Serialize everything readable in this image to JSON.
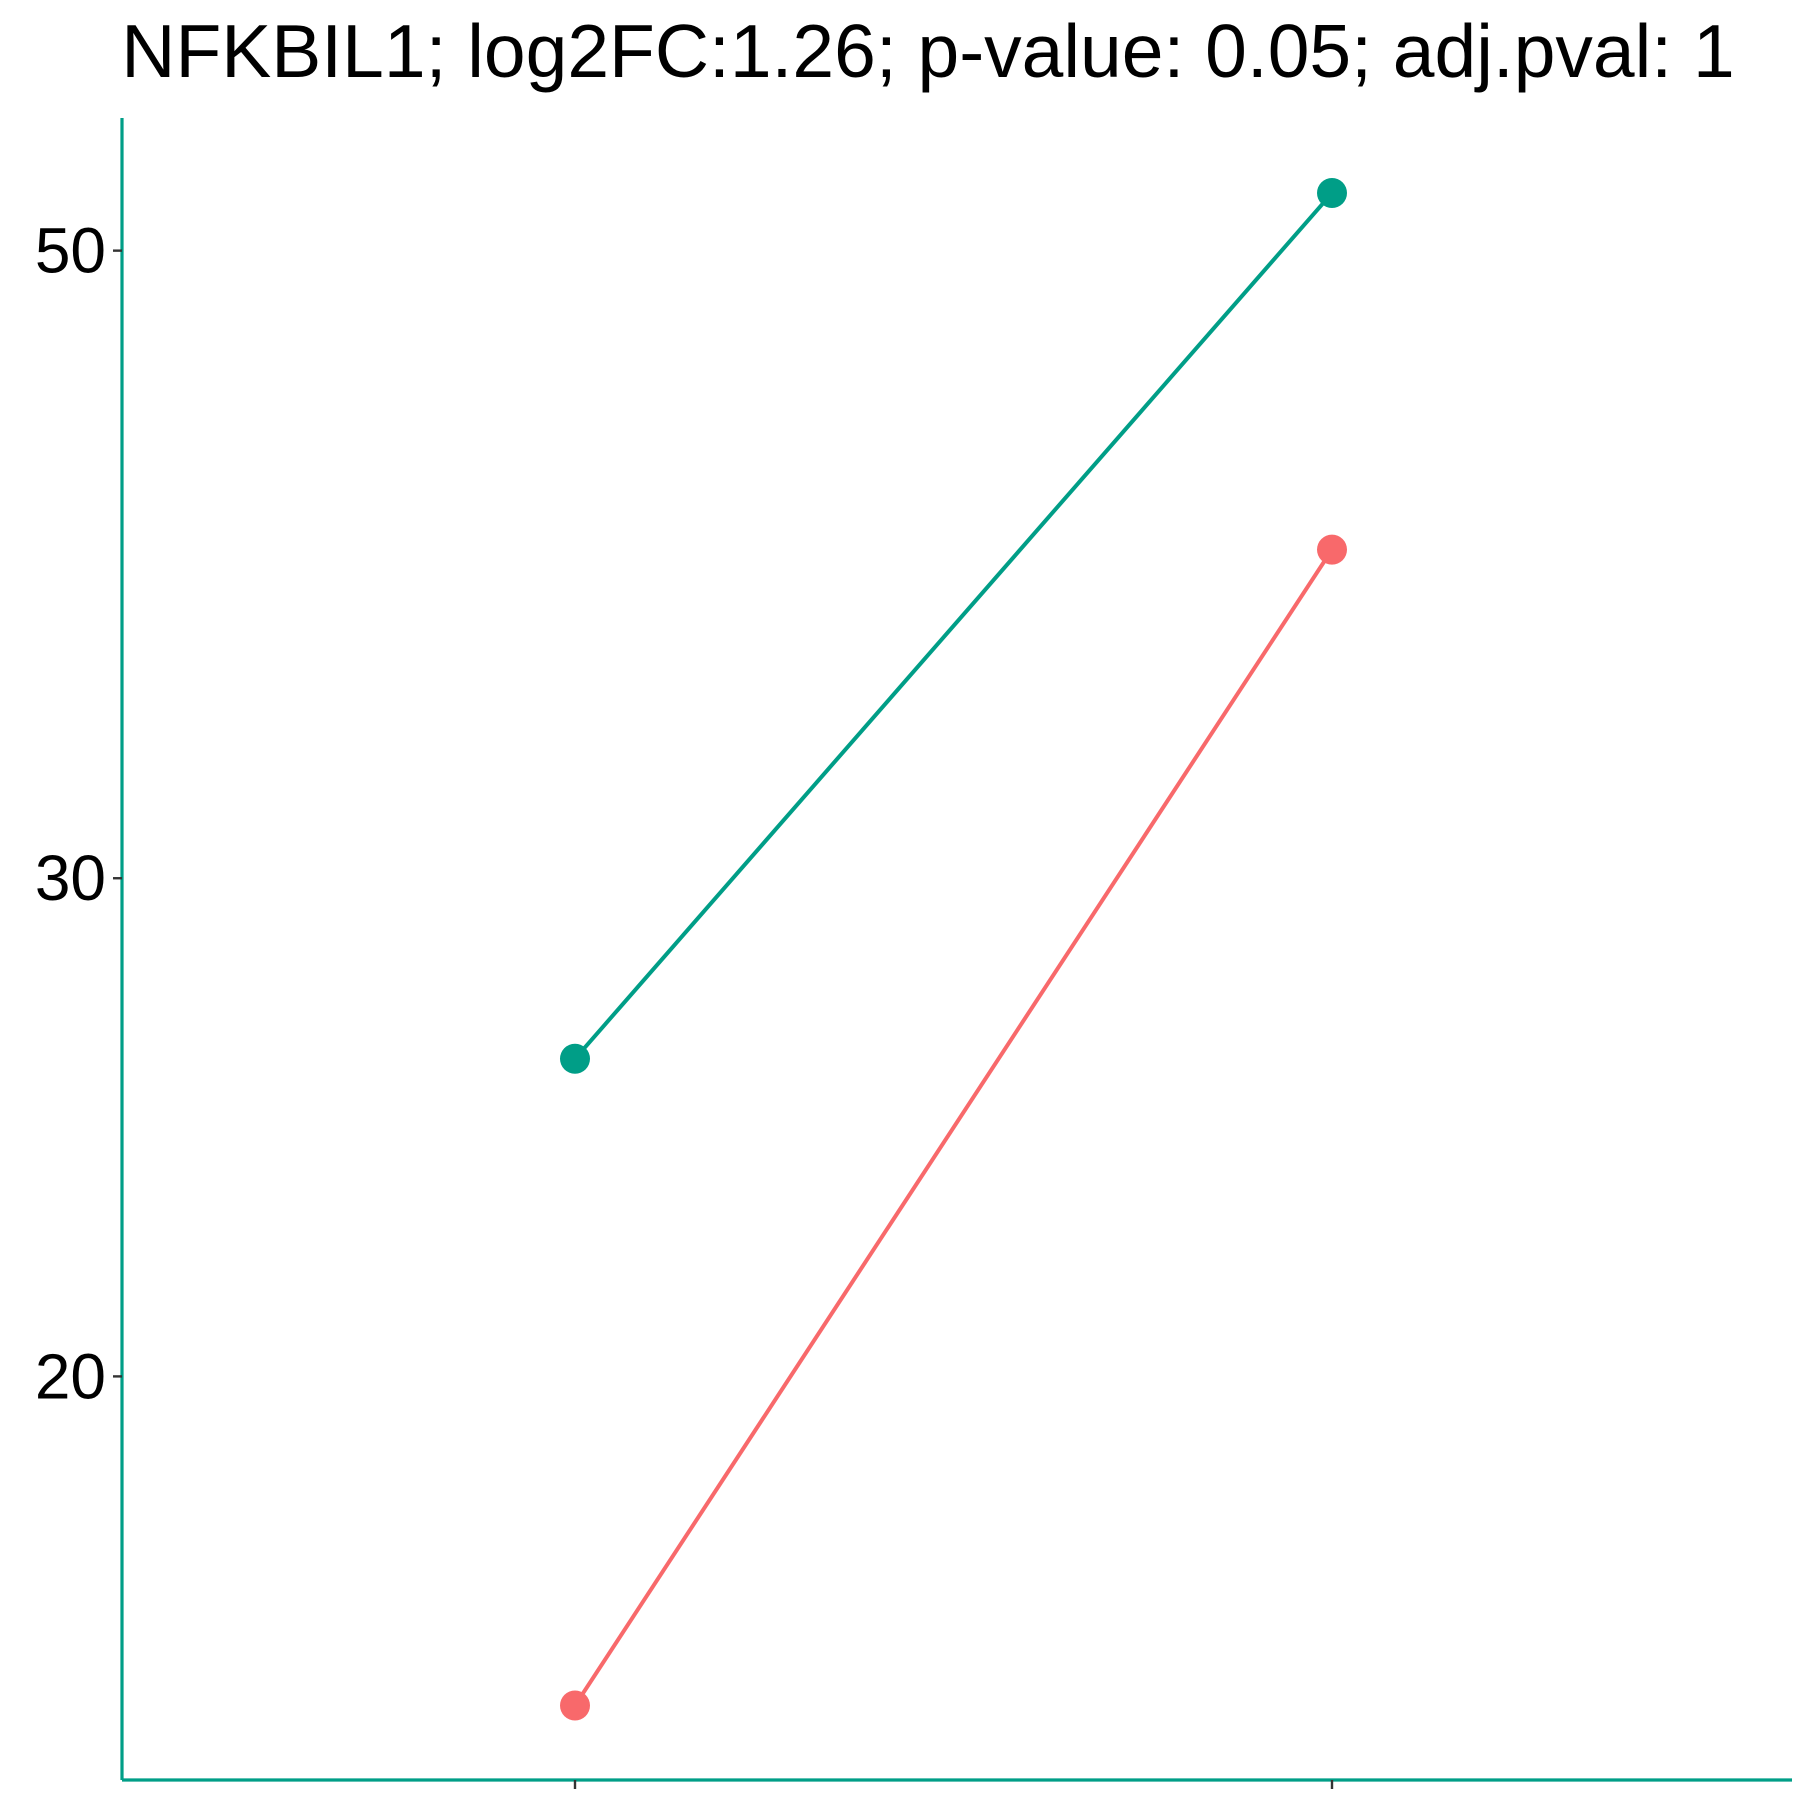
{
  "chart_data": {
    "type": "line",
    "title": "NFKBIL1; log2FC:1.26; p-value: 0.05; adj.pval: 1",
    "xlabel": "",
    "ylabel": "",
    "x": [
      "",
      ""
    ],
    "y_axis": {
      "scale": "log",
      "range": [
        14.4,
        55.7
      ],
      "ticks": [
        20,
        30,
        50
      ],
      "tick_labels": [
        "20",
        "30",
        "50"
      ]
    },
    "grid": false,
    "legend": "none",
    "axis_color": "#009E87",
    "series": [
      {
        "color": "#009E87",
        "values": [
          25.9,
          52.4
        ]
      },
      {
        "color": "#F8696B",
        "values": [
          15.3,
          39.2
        ]
      }
    ]
  }
}
